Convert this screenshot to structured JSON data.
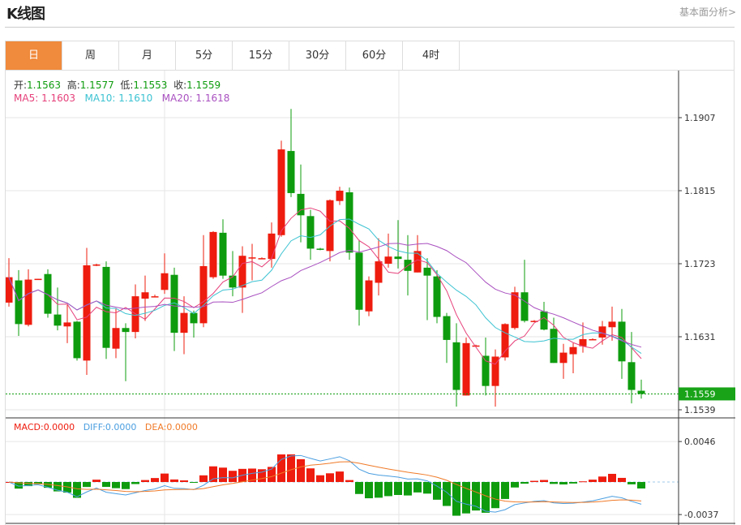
{
  "header": {
    "title": "K线图",
    "link": "基本面分析>"
  },
  "tabs": [
    {
      "label": "日",
      "active": true
    },
    {
      "label": "周"
    },
    {
      "label": "月"
    },
    {
      "label": "5分"
    },
    {
      "label": "15分"
    },
    {
      "label": "30分"
    },
    {
      "label": "60分"
    },
    {
      "label": "4时"
    }
  ],
  "ohlc": {
    "open_label": "开:",
    "open": "1.1563",
    "high_label": "高:",
    "high": "1.1577",
    "low_label": "低:",
    "low": "1.1553",
    "close_label": "收:",
    "close": "1.1559"
  },
  "ma": {
    "ma5_label": "MA5: ",
    "ma5": "1.1603",
    "ma10_label": "MA10: ",
    "ma10": "1.1610",
    "ma20_label": "MA20: ",
    "ma20": "1.1618"
  },
  "macd": {
    "macd_label": "MACD:",
    "macd": "0.0000",
    "diff_label": "DIFF:",
    "diff": "0.0000",
    "dea_label": "DEA:",
    "dea": "0.0000"
  },
  "colors": {
    "up": "#ee1c0e",
    "down": "#0e9c0e",
    "ma5": "#e6407a",
    "ma10": "#3cc3d2",
    "ma20": "#a950c0",
    "diff": "#4a9ee0",
    "dea": "#f07a28",
    "active_tab": "#f08a3c"
  },
  "chart_data": {
    "type": "candlestick",
    "price_ticks": [
      "1.1907",
      "1.1815",
      "1.1723",
      "1.1631",
      "1.1539"
    ],
    "current_price": "1.1559",
    "macd_ticks": [
      "0.0046",
      "-0.0037"
    ],
    "ylim": [
      1.1539,
      1.1907
    ],
    "candles_ohlc": [
      [
        1.1674,
        1.173,
        1.1669,
        1.1706
      ],
      [
        1.1702,
        1.1715,
        1.1632,
        1.1647
      ],
      [
        1.1646,
        1.1716,
        1.1644,
        1.1703
      ],
      [
        1.1703,
        1.1704,
        1.1703,
        1.1704
      ],
      [
        1.171,
        1.1716,
        1.1655,
        1.166
      ],
      [
        1.1659,
        1.1693,
        1.1639,
        1.1645
      ],
      [
        1.1644,
        1.1671,
        1.1623,
        1.1649
      ],
      [
        1.165,
        1.1651,
        1.1601,
        1.1604
      ],
      [
        1.1601,
        1.1743,
        1.1583,
        1.1721
      ],
      [
        1.1721,
        1.1723,
        1.172,
        1.1722
      ],
      [
        1.1719,
        1.1726,
        1.1603,
        1.1617
      ],
      [
        1.1616,
        1.1667,
        1.1604,
        1.1642
      ],
      [
        1.1642,
        1.1648,
        1.1575,
        1.1637
      ],
      [
        1.1637,
        1.1697,
        1.1629,
        1.1682
      ],
      [
        1.1679,
        1.1708,
        1.1651,
        1.1687
      ],
      [
        1.1682,
        1.1684,
        1.1681,
        1.1682
      ],
      [
        1.169,
        1.1736,
        1.1685,
        1.1711
      ],
      [
        1.1709,
        1.1718,
        1.1613,
        1.1636
      ],
      [
        1.1636,
        1.1682,
        1.1609,
        1.1661
      ],
      [
        1.1661,
        1.1664,
        1.163,
        1.1648
      ],
      [
        1.1648,
        1.1759,
        1.1643,
        1.172
      ],
      [
        1.1706,
        1.1764,
        1.1704,
        1.1763
      ],
      [
        1.1762,
        1.1779,
        1.1704,
        1.1708
      ],
      [
        1.1708,
        1.1739,
        1.1682,
        1.1693
      ],
      [
        1.1693,
        1.1745,
        1.1661,
        1.1733
      ],
      [
        1.173,
        1.1748,
        1.1702,
        1.1731
      ],
      [
        1.173,
        1.1731,
        1.1729,
        1.173
      ],
      [
        1.1729,
        1.1775,
        1.1718,
        1.1761
      ],
      [
        1.1759,
        1.1878,
        1.1757,
        1.1867
      ],
      [
        1.1865,
        1.1918,
        1.1807,
        1.1812
      ],
      [
        1.1811,
        1.1848,
        1.175,
        1.1784
      ],
      [
        1.1783,
        1.1791,
        1.1728,
        1.1742
      ],
      [
        1.1742,
        1.1743,
        1.174,
        1.1741
      ],
      [
        1.1739,
        1.1804,
        1.1726,
        1.1803
      ],
      [
        1.1802,
        1.182,
        1.1797,
        1.1815
      ],
      [
        1.1813,
        1.1819,
        1.1728,
        1.1737
      ],
      [
        1.1737,
        1.1753,
        1.1645,
        1.1665
      ],
      [
        1.1663,
        1.1707,
        1.1657,
        1.1702
      ],
      [
        1.1699,
        1.1755,
        1.1683,
        1.1726
      ],
      [
        1.1723,
        1.1761,
        1.1718,
        1.1732
      ],
      [
        1.1732,
        1.1778,
        1.1717,
        1.1729
      ],
      [
        1.1728,
        1.1759,
        1.1683,
        1.1714
      ],
      [
        1.1712,
        1.1759,
        1.1712,
        1.1739
      ],
      [
        1.1718,
        1.173,
        1.1652,
        1.1708
      ],
      [
        1.1707,
        1.1715,
        1.1648,
        1.1656
      ],
      [
        1.1657,
        1.1661,
        1.1598,
        1.1627
      ],
      [
        1.1624,
        1.1648,
        1.1543,
        1.1564
      ],
      [
        1.1557,
        1.163,
        1.1557,
        1.1623
      ],
      [
        1.162,
        1.1621,
        1.1619,
        1.162
      ],
      [
        1.1607,
        1.163,
        1.1557,
        1.1569
      ],
      [
        1.1569,
        1.1615,
        1.1543,
        1.1606
      ],
      [
        1.1605,
        1.1648,
        1.1601,
        1.1647
      ],
      [
        1.1642,
        1.1694,
        1.164,
        1.1687
      ],
      [
        1.1687,
        1.1728,
        1.1649,
        1.1651
      ],
      [
        1.1651,
        1.1652,
        1.165,
        1.1651
      ],
      [
        1.1663,
        1.1675,
        1.1639,
        1.164
      ],
      [
        1.1641,
        1.1655,
        1.1598,
        1.1598
      ],
      [
        1.1598,
        1.1622,
        1.1578,
        1.1611
      ],
      [
        1.1609,
        1.1623,
        1.1585,
        1.1618
      ],
      [
        1.1619,
        1.1649,
        1.1611,
        1.1628
      ],
      [
        1.1628,
        1.1629,
        1.1627,
        1.1628
      ],
      [
        1.163,
        1.1651,
        1.1621,
        1.1644
      ],
      [
        1.1643,
        1.1669,
        1.1626,
        1.165
      ],
      [
        1.165,
        1.1666,
        1.1578,
        1.16
      ],
      [
        1.1599,
        1.1637,
        1.1547,
        1.1564
      ],
      [
        1.1563,
        1.1577,
        1.1553,
        1.1559
      ]
    ]
  }
}
